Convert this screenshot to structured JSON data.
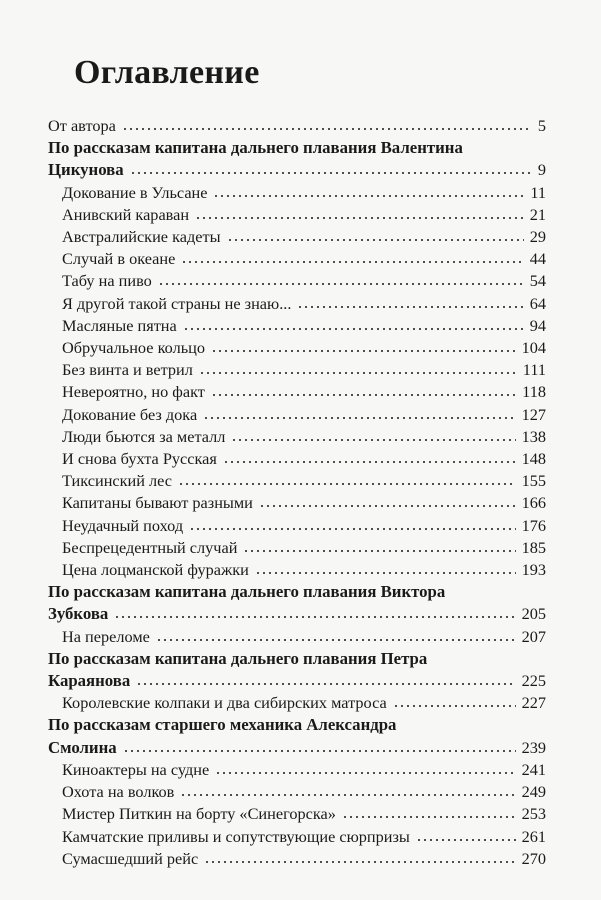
{
  "title": "Оглавление",
  "entries": [
    {
      "level": "front",
      "lines": [
        "От автора"
      ],
      "page": 5
    },
    {
      "level": "section",
      "lines": [
        "По рассказам капитана дальнего плавания Валентина",
        "Цикунова"
      ],
      "page": 9
    },
    {
      "level": "item",
      "lines": [
        "Докование в Ульсане"
      ],
      "page": 11
    },
    {
      "level": "item",
      "lines": [
        "Анивский караван"
      ],
      "page": 21
    },
    {
      "level": "item",
      "lines": [
        "Австралийские кадеты"
      ],
      "page": 29
    },
    {
      "level": "item",
      "lines": [
        "Случай в океане"
      ],
      "page": 44
    },
    {
      "level": "item",
      "lines": [
        "Табу на пиво"
      ],
      "page": 54
    },
    {
      "level": "item",
      "lines": [
        "Я другой такой страны не знаю..."
      ],
      "page": 64
    },
    {
      "level": "item",
      "lines": [
        "Масляные пятна"
      ],
      "page": 94
    },
    {
      "level": "item",
      "lines": [
        "Обручальное кольцо"
      ],
      "page": 104
    },
    {
      "level": "item",
      "lines": [
        "Без винта и ветрил"
      ],
      "page": 111
    },
    {
      "level": "item",
      "lines": [
        "Невероятно, но факт"
      ],
      "page": 118
    },
    {
      "level": "item",
      "lines": [
        "Докование без дока"
      ],
      "page": 127
    },
    {
      "level": "item",
      "lines": [
        "Люди бьются за металл"
      ],
      "page": 138
    },
    {
      "level": "item",
      "lines": [
        "И снова бухта Русская"
      ],
      "page": 148
    },
    {
      "level": "item",
      "lines": [
        "Тиксинский лес"
      ],
      "page": 155
    },
    {
      "level": "item",
      "lines": [
        "Капитаны бывают разными"
      ],
      "page": 166
    },
    {
      "level": "item",
      "lines": [
        "Неудачный поход"
      ],
      "page": 176
    },
    {
      "level": "item",
      "lines": [
        "Беспрецедентный случай"
      ],
      "page": 185
    },
    {
      "level": "item",
      "lines": [
        "Цена лоцманской фуражки"
      ],
      "page": 193
    },
    {
      "level": "section",
      "lines": [
        "По рассказам капитана дальнего плавания Виктора",
        "Зубкова"
      ],
      "page": 205
    },
    {
      "level": "item",
      "lines": [
        "На переломе"
      ],
      "page": 207
    },
    {
      "level": "section",
      "lines": [
        "По рассказам капитана дальнего плавания Петра",
        "Караянова"
      ],
      "page": 225
    },
    {
      "level": "item",
      "lines": [
        "Королевские колпаки и два сибирских матроса"
      ],
      "page": 227
    },
    {
      "level": "section",
      "lines": [
        "По рассказам старшего механика Александра",
        "Смолина"
      ],
      "page": 239
    },
    {
      "level": "item",
      "lines": [
        "Киноактеры на судне"
      ],
      "page": 241
    },
    {
      "level": "item",
      "lines": [
        "Охота на волков"
      ],
      "page": 249
    },
    {
      "level": "item",
      "lines": [
        "Мистер Питкин на борту «Синегорска»"
      ],
      "page": 253
    },
    {
      "level": "item",
      "lines": [
        "Камчатские приливы и сопутствующие сюрпризы"
      ],
      "page": 261
    },
    {
      "level": "item",
      "lines": [
        "Сумасшедший рейс"
      ],
      "page": 270
    }
  ]
}
